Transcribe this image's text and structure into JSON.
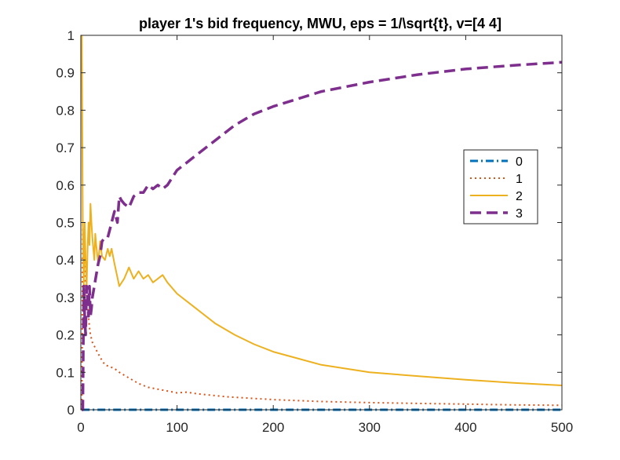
{
  "chart_data": {
    "type": "line",
    "title": "player 1's bid frequency, MWU, eps = 1/\\sqrt{t}, v=[4 4]",
    "xlabel": "",
    "ylabel": "",
    "xlim": [
      0,
      500
    ],
    "ylim": [
      0,
      1
    ],
    "xticks": [
      0,
      100,
      200,
      300,
      400,
      500
    ],
    "yticks": [
      0,
      0.1,
      0.2,
      0.3,
      0.4,
      0.5,
      0.6,
      0.7,
      0.8,
      0.9,
      1
    ],
    "grid": false,
    "legend_position": "right",
    "series": [
      {
        "name": "0",
        "color": "#0072BD",
        "style": "dashdot",
        "x": [
          1,
          2,
          3,
          5,
          10,
          50,
          100,
          200,
          300,
          400,
          500
        ],
        "y": [
          0.0,
          0.0,
          0.0,
          0.0,
          0.0,
          0.0,
          0.0,
          0.0,
          0.0,
          0.0,
          0.0
        ]
      },
      {
        "name": "1",
        "color": "#D95319",
        "style": "dotted",
        "x": [
          1,
          2,
          3,
          4,
          5,
          6,
          7,
          8,
          9,
          10,
          12,
          14,
          16,
          18,
          20,
          25,
          30,
          35,
          40,
          50,
          60,
          70,
          80,
          90,
          100,
          110,
          120,
          150,
          200,
          250,
          300,
          350,
          400,
          450,
          500
        ],
        "y": [
          0.0,
          0.5,
          0.33,
          0.25,
          0.4,
          0.33,
          0.29,
          0.25,
          0.22,
          0.2,
          0.18,
          0.17,
          0.16,
          0.15,
          0.14,
          0.12,
          0.115,
          0.11,
          0.1,
          0.085,
          0.07,
          0.06,
          0.055,
          0.05,
          0.045,
          0.047,
          0.043,
          0.035,
          0.027,
          0.022,
          0.019,
          0.017,
          0.015,
          0.013,
          0.012
        ]
      },
      {
        "name": "2",
        "color": "#EDB120",
        "style": "solid",
        "x": [
          1,
          2,
          3,
          4,
          5,
          6,
          7,
          8,
          9,
          10,
          11,
          12,
          13,
          14,
          15,
          16,
          18,
          20,
          22,
          25,
          28,
          30,
          32,
          35,
          40,
          45,
          50,
          55,
          60,
          65,
          70,
          75,
          80,
          85,
          90,
          100,
          105,
          110,
          120,
          140,
          160,
          180,
          200,
          250,
          300,
          350,
          400,
          450,
          500
        ],
        "y": [
          1.0,
          0.5,
          0.33,
          0.5,
          0.4,
          0.33,
          0.43,
          0.5,
          0.44,
          0.55,
          0.5,
          0.46,
          0.43,
          0.4,
          0.47,
          0.44,
          0.39,
          0.45,
          0.41,
          0.4,
          0.43,
          0.41,
          0.43,
          0.39,
          0.33,
          0.35,
          0.38,
          0.35,
          0.37,
          0.35,
          0.36,
          0.34,
          0.35,
          0.36,
          0.34,
          0.31,
          0.3,
          0.29,
          0.27,
          0.23,
          0.2,
          0.175,
          0.155,
          0.12,
          0.1,
          0.09,
          0.08,
          0.072,
          0.065
        ]
      },
      {
        "name": "3",
        "color": "#7E2F8E",
        "style": "dashed",
        "x": [
          1,
          2,
          3,
          4,
          5,
          6,
          7,
          8,
          9,
          10,
          11,
          12,
          14,
          16,
          18,
          20,
          22,
          25,
          28,
          30,
          32,
          35,
          38,
          40,
          42,
          45,
          50,
          55,
          60,
          65,
          70,
          75,
          80,
          85,
          90,
          100,
          110,
          120,
          140,
          160,
          180,
          200,
          250,
          300,
          350,
          400,
          450,
          500
        ],
        "y": [
          0.0,
          0.0,
          0.33,
          0.25,
          0.2,
          0.33,
          0.29,
          0.25,
          0.33,
          0.25,
          0.27,
          0.3,
          0.33,
          0.36,
          0.39,
          0.41,
          0.45,
          0.46,
          0.46,
          0.48,
          0.5,
          0.53,
          0.5,
          0.57,
          0.56,
          0.55,
          0.54,
          0.57,
          0.58,
          0.58,
          0.6,
          0.59,
          0.6,
          0.59,
          0.6,
          0.64,
          0.66,
          0.68,
          0.72,
          0.76,
          0.79,
          0.81,
          0.85,
          0.875,
          0.895,
          0.91,
          0.92,
          0.928
        ]
      }
    ]
  }
}
